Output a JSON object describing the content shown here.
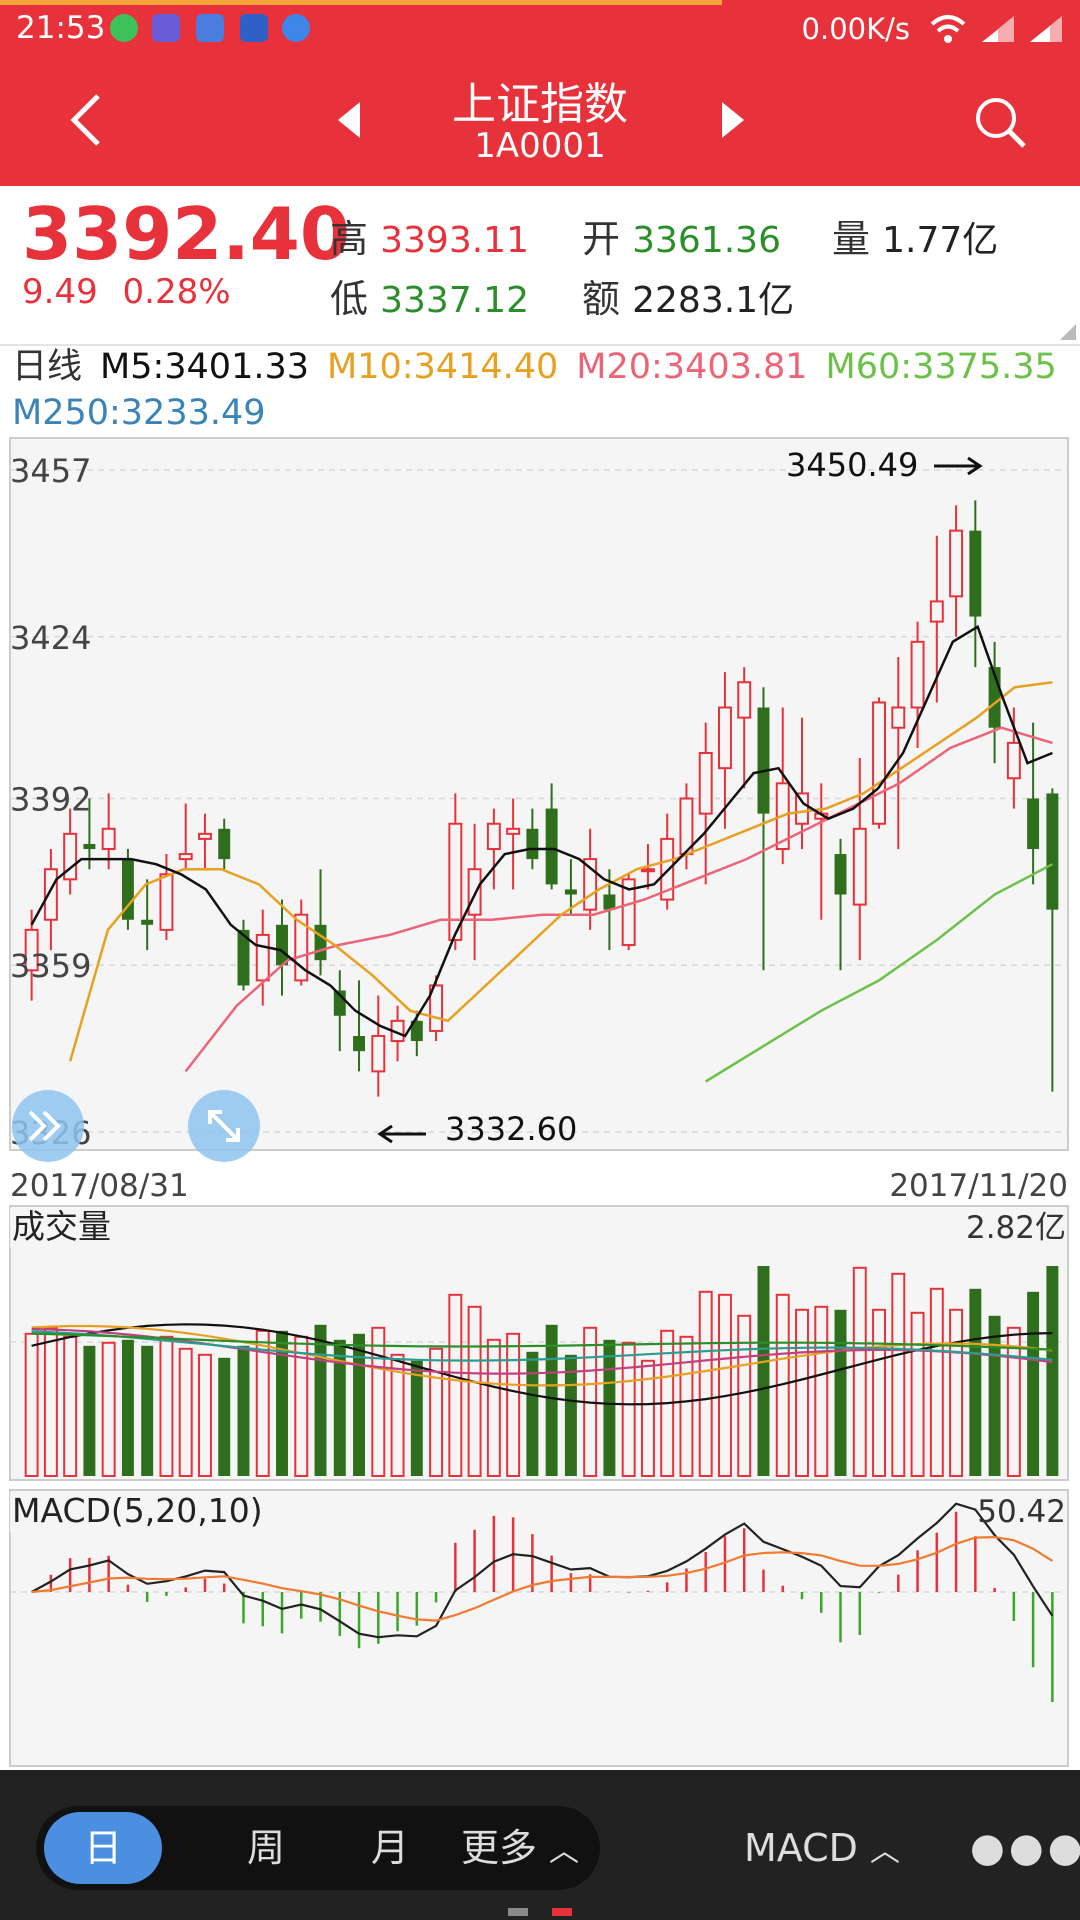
{
  "status_bar": {
    "time": "21:53",
    "net_speed": "0.00K/s",
    "icons": [
      "wechat-icon",
      "app-icon",
      "browser-icon",
      "qq-icon",
      "globe-icon",
      "wifi-icon",
      "signal-icon",
      "signal-icon"
    ]
  },
  "header": {
    "title": "上证指数",
    "code": "1A0001"
  },
  "quote": {
    "price": "3392.40",
    "change": "9.49",
    "change_pct": "0.28%",
    "high_label": "高",
    "high": "3393.11",
    "low_label": "低",
    "low": "3337.12",
    "open_label": "开",
    "open": "3361.36",
    "amount_label": "额",
    "amount": "2283.1亿",
    "volume_label": "量",
    "volume": "1.77亿"
  },
  "ma_legend": {
    "period": "日线",
    "m5": "M5:3401.33",
    "m10": "M10:3414.40",
    "m20": "M20:3403.81",
    "m60": "M60:3375.35",
    "m250": "M250:3233.49"
  },
  "colors": {
    "up": "#e8323b",
    "down": "#2f6e1c",
    "m5": "#111111",
    "m10": "#e8a020",
    "m20": "#ec6477",
    "m60": "#6cc14a",
    "m250": "#3a84b8"
  },
  "chart_data": [
    {
      "type": "candlestick",
      "y_ticks": [
        "3457",
        "3424",
        "3392",
        "3359",
        "3326"
      ],
      "ylim": [
        3326,
        3457
      ],
      "x_start_label": "2017/08/31",
      "x_end_label": "2017/11/20",
      "annotations": {
        "high": "3450.49",
        "low": "3332.60"
      },
      "candles": [
        [
          3358,
          3366,
          3352,
          3370
        ],
        [
          3368,
          3378,
          3362,
          3382
        ],
        [
          3376,
          3385,
          3373,
          3390
        ],
        [
          3383,
          3382,
          3378,
          3392
        ],
        [
          3382,
          3386,
          3378,
          3393
        ],
        [
          3380,
          3368,
          3366,
          3382
        ],
        [
          3368,
          3367,
          3362,
          3376
        ],
        [
          3366,
          3377,
          3364,
          3381
        ],
        [
          3380,
          3381,
          3378,
          3391
        ],
        [
          3384,
          3385,
          3378,
          3389
        ],
        [
          3386,
          3380,
          3378,
          3388
        ],
        [
          3366,
          3355,
          3354,
          3368
        ],
        [
          3356,
          3365,
          3351,
          3370
        ],
        [
          3367,
          3359,
          3353,
          3372
        ],
        [
          3356,
          3369,
          3355,
          3372
        ],
        [
          3367,
          3360,
          3357,
          3378
        ],
        [
          3354,
          3349,
          3342,
          3358
        ],
        [
          3345,
          3342,
          3338,
          3356
        ],
        [
          3338,
          3345,
          3333,
          3353
        ],
        [
          3344,
          3348,
          3340,
          3351
        ],
        [
          3348,
          3344,
          3341,
          3350
        ],
        [
          3346,
          3355,
          3344,
          3357
        ],
        [
          3364,
          3387,
          3362,
          3393
        ],
        [
          3369,
          3378,
          3360,
          3387
        ],
        [
          3382,
          3387,
          3374,
          3390
        ],
        [
          3385,
          3386,
          3374,
          3392
        ],
        [
          3386,
          3380,
          3378,
          3390
        ],
        [
          3390,
          3375,
          3374,
          3395
        ],
        [
          3374,
          3373,
          3369,
          3380
        ],
        [
          3370,
          3380,
          3366,
          3386
        ],
        [
          3373,
          3370,
          3362,
          3378
        ],
        [
          3363,
          3376,
          3362,
          3377
        ],
        [
          3378,
          3378,
          3374,
          3383
        ],
        [
          3372,
          3384,
          3370,
          3389
        ],
        [
          3381,
          3392,
          3378,
          3395
        ],
        [
          3389,
          3401,
          3375,
          3407
        ],
        [
          3398,
          3410,
          3386,
          3417
        ],
        [
          3408,
          3415,
          3394,
          3418
        ],
        [
          3410,
          3389,
          3358,
          3414
        ],
        [
          3382,
          3395,
          3379,
          3410
        ],
        [
          3387,
          3393,
          3382,
          3408
        ],
        [
          3388,
          3389,
          3368,
          3395
        ],
        [
          3381,
          3373,
          3358,
          3384
        ],
        [
          3371,
          3386,
          3360,
          3400
        ],
        [
          3387,
          3411,
          3386,
          3412
        ],
        [
          3406,
          3410,
          3382,
          3420
        ],
        [
          3410,
          3423,
          3402,
          3427
        ],
        [
          3427,
          3431,
          3411,
          3444
        ],
        [
          3432,
          3445,
          3424,
          3450
        ],
        [
          3445,
          3428,
          3418,
          3451
        ],
        [
          3418,
          3406,
          3399,
          3423
        ],
        [
          3396,
          3403,
          3390,
          3410
        ],
        [
          3392,
          3382,
          3375,
          3407
        ],
        [
          3393,
          3370,
          3334,
          3394
        ]
      ],
      "m5": [
        3367,
        3376,
        3380,
        3380,
        3380,
        3379,
        3377,
        3374,
        3367,
        3363,
        3362,
        3358,
        3355,
        3350,
        3347,
        3345,
        3353,
        3365,
        3375,
        3381,
        3382,
        3382,
        3380,
        3376,
        3374,
        3375,
        3380,
        3385,
        3391,
        3397,
        3398,
        3391,
        3388,
        3390,
        3394,
        3401,
        3412,
        3423,
        3426,
        3412,
        3399,
        3401
      ],
      "m10": [
        3340,
        3366,
        3375,
        3378,
        3378,
        3375,
        3368,
        3363,
        3357,
        3350,
        3348,
        3355,
        3362,
        3369,
        3374,
        3378,
        3380,
        3383,
        3386,
        3389,
        3390,
        3393,
        3398,
        3403,
        3408,
        3414,
        3415
      ],
      "m20": [
        3338,
        3351,
        3360,
        3363,
        3365,
        3368,
        3368,
        3369,
        3369,
        3372,
        3376,
        3380,
        3385,
        3390,
        3395,
        3402,
        3406,
        3403
      ],
      "m60": [
        3336,
        3343,
        3350,
        3356,
        3364,
        3373,
        3379
      ],
      "m250": []
    },
    {
      "type": "bar",
      "label": "成交量",
      "max_label": "2.82亿"
    },
    {
      "type": "bar",
      "label": "MACD(5,20,10)",
      "max_label": "50.42"
    }
  ],
  "bottom_bar": {
    "day": "日",
    "week": "周",
    "month": "月",
    "more": "更多",
    "indicator": "MACD"
  }
}
